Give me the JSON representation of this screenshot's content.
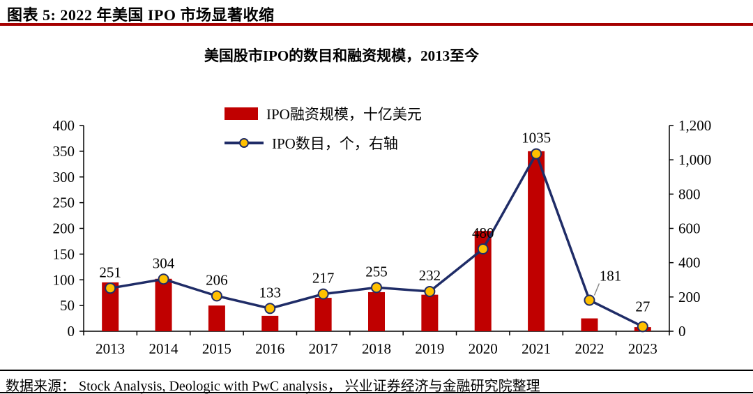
{
  "header": {
    "title": "图表 5:  2022 年美国 IPO 市场显著收缩",
    "rule_color": "#A50000"
  },
  "chart": {
    "subtitle": "美国股市IPO的数目和融资规模，2013至今",
    "legend": [
      {
        "label": "IPO融资规模，十亿美元"
      },
      {
        "label": "IPO数目，个，右轴"
      }
    ]
  },
  "chart_data": {
    "type": "combo",
    "title": "美国股市IPO的数目和融资规模，2013至今",
    "categories": [
      "2013",
      "2014",
      "2015",
      "2016",
      "2017",
      "2018",
      "2019",
      "2020",
      "2021",
      "2022",
      "2023"
    ],
    "series": [
      {
        "name": "IPO融资规模，十亿美元",
        "type": "bar",
        "axis": "left",
        "values": [
          95,
          102,
          50,
          30,
          65,
          76,
          71,
          195,
          350,
          25,
          8
        ]
      },
      {
        "name": "IPO数目，个，右轴",
        "type": "line",
        "axis": "right",
        "values": [
          251,
          304,
          206,
          133,
          217,
          255,
          232,
          480,
          1035,
          181,
          27
        ],
        "data_labels": true,
        "label_offsets": {
          "9": {
            "dx": 30,
            "dy": -28,
            "leader": true
          },
          "10": {
            "dy": -22
          }
        }
      }
    ],
    "left_axis": {
      "min": 0,
      "max": 400,
      "step": 50
    },
    "right_axis": {
      "min": 0,
      "max": 1200,
      "step": 200,
      "tick_format": "comma"
    },
    "legend_position": "top",
    "grid": false,
    "colors": {
      "bar": "#C00000",
      "line": "#1F2C67",
      "marker_fill": "#FFC000",
      "leader": "#8A8A8A"
    }
  },
  "footer": {
    "source": "数据来源： Stock Analysis, Deologic with PwC analysis， 兴业证券经济与金融研究院整理"
  }
}
